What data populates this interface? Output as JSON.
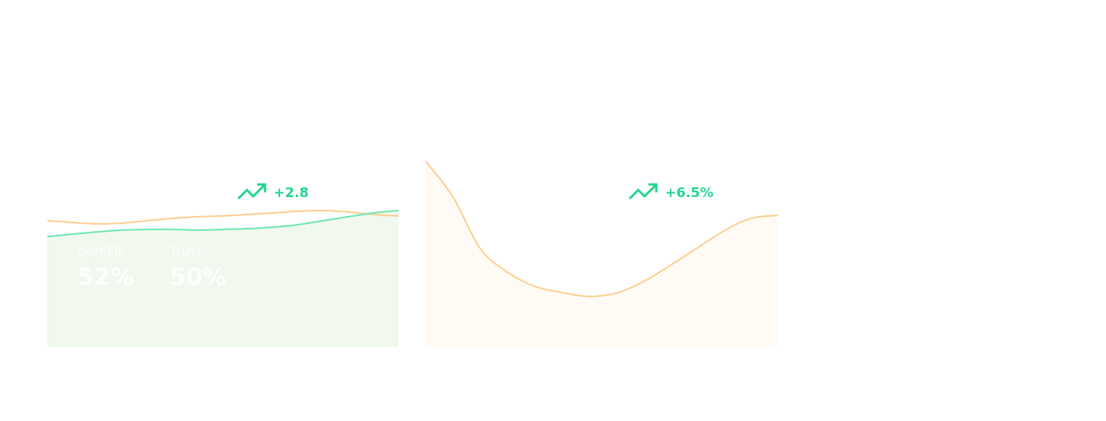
{
  "chart_data": [
    {
      "type": "area",
      "badge": "+2.8",
      "series": [
        {
          "color": "#fccf92",
          "values": [
            66.7,
            65.8,
            65,
            65.4,
            66.7,
            67.9,
            68.8,
            69.2,
            70,
            70.8,
            71.7,
            72.1,
            71.3,
            70,
            69.2
          ]
        },
        {
          "color": "#6ee7b0",
          "fill": "#f1f8ee",
          "values": [
            58.3,
            59.6,
            60.8,
            61.7,
            62.1,
            62.1,
            61.7,
            62.1,
            62.5,
            63.3,
            64.6,
            66.7,
            68.8,
            70.8,
            72.1
          ]
        }
      ],
      "stats": [
        {
          "label": "SemFit",
          "value": "52%"
        },
        {
          "label": "Trust",
          "value": "50%"
        }
      ]
    },
    {
      "type": "area",
      "badge": "+6.5%",
      "series": [
        {
          "color": "#fccf92",
          "fill": "#fffaf3",
          "values": [
            97.9,
            79.2,
            52.1,
            39.6,
            32.1,
            28.8,
            26.7,
            28.3,
            34.2,
            42.9,
            52.1,
            61.3,
            67.9,
            69.6
          ]
        }
      ]
    }
  ]
}
